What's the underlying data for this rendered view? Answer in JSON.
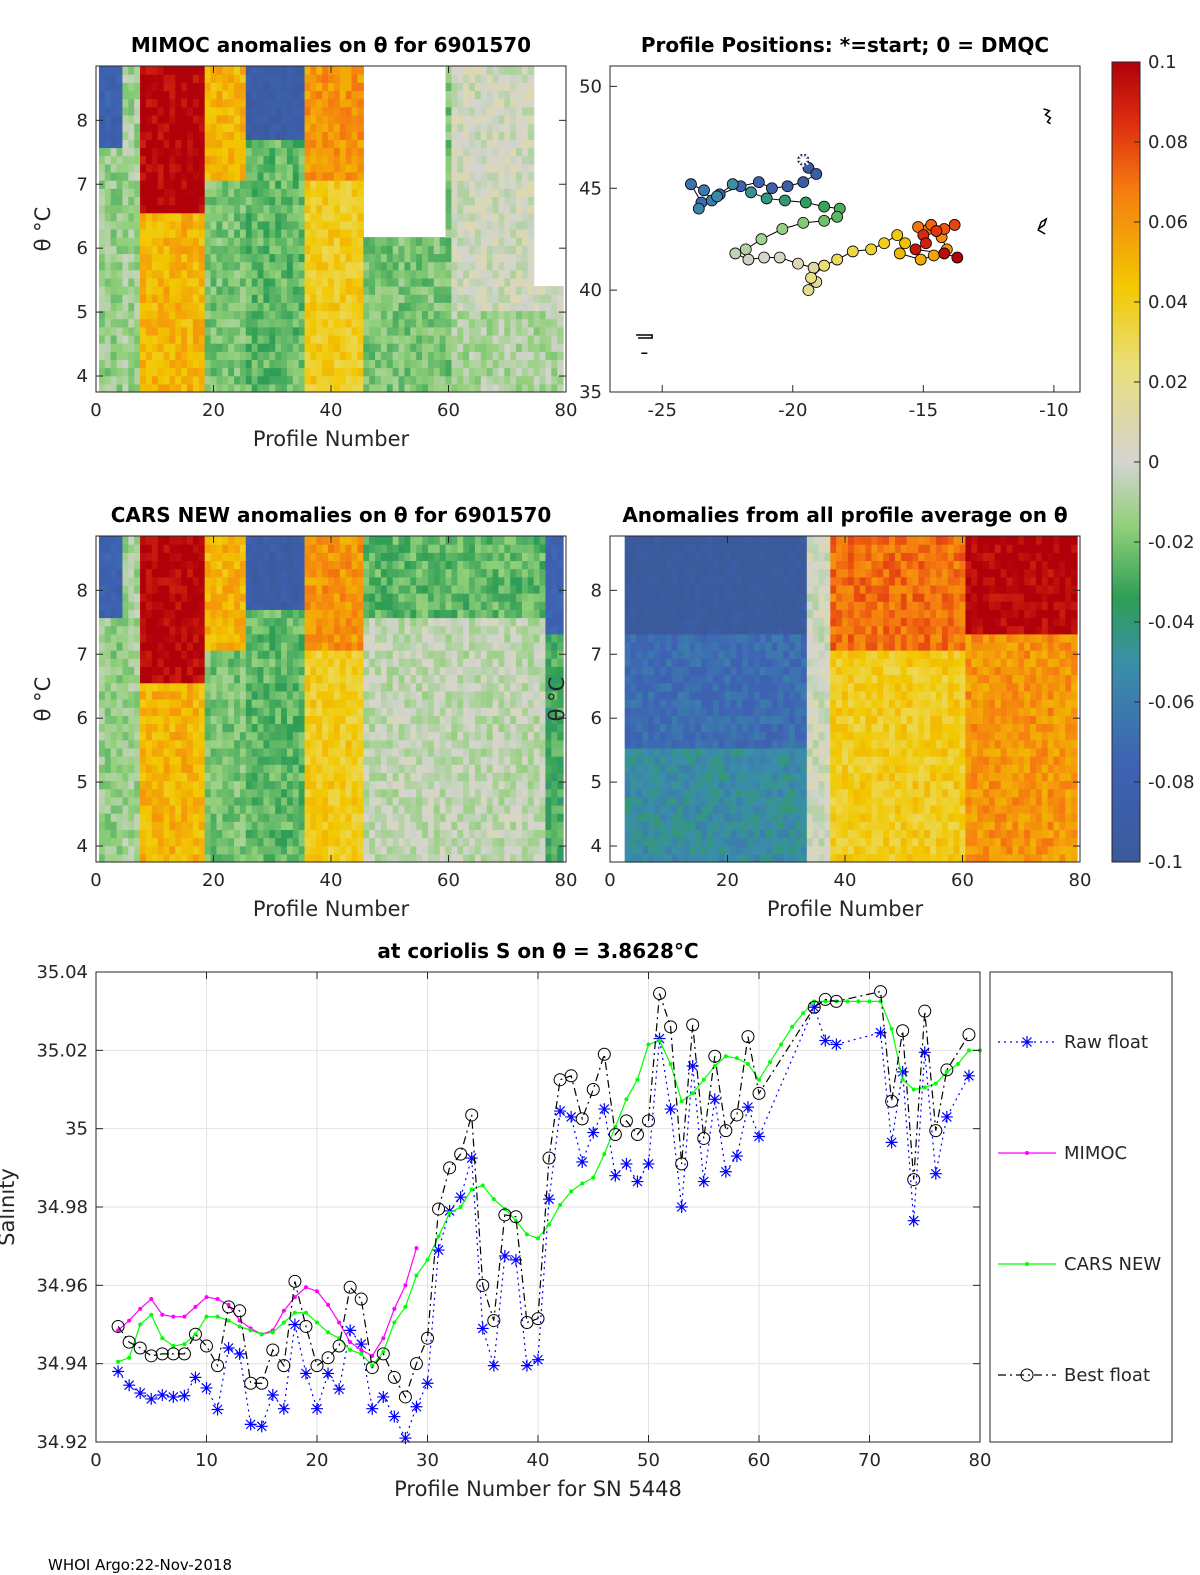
{
  "figure": {
    "footer": "WHOI Argo:22-Nov-2018",
    "colorbar": {
      "ticks": [
        "0.1",
        "0.08",
        "0.06",
        "0.04",
        "0.02",
        "0",
        "-0.02",
        "-0.04",
        "-0.06",
        "-0.08",
        "-0.1"
      ],
      "range": [
        -0.1,
        0.1
      ]
    }
  },
  "chart_data": [
    {
      "type": "heatmap",
      "title": "MIMOC anomalies on θ  for 6901570",
      "xlabel": "Profile Number",
      "ylabel": "θ °C",
      "xlim": [
        0,
        80
      ],
      "ylim": [
        3.75,
        8.85
      ],
      "xticks": [
        "0",
        "20",
        "40",
        "60",
        "80"
      ],
      "yticks": [
        "4",
        "5",
        "6",
        "7",
        "8"
      ]
    },
    {
      "type": "scatter",
      "title": "Profile Positions: *=start; 0 = DMQC",
      "xlabel": "",
      "ylabel": "",
      "xlim": [
        -27,
        -9
      ],
      "ylim": [
        35,
        51
      ],
      "xticks": [
        "-25",
        "-20",
        "-15",
        "-10"
      ],
      "yticks": [
        "35",
        "40",
        "45",
        "50"
      ],
      "lon": [
        -19.6,
        -19.4,
        -19.1,
        -19.6,
        -20.2,
        -20.8,
        -21.3,
        -22.0,
        -22.8,
        -23.5,
        -23.9,
        -23.4,
        -23.1,
        -23.6,
        -22.9,
        -22.3,
        -21.6,
        -21.0,
        -20.3,
        -19.5,
        -18.8,
        -18.2,
        -18.3,
        -18.8,
        -19.6,
        -20.4,
        -21.2,
        -21.8,
        -22.2,
        -21.7,
        -21.1,
        -20.5,
        -19.8,
        -19.2,
        -19.1,
        -19.4,
        -19.3,
        -18.8,
        -18.3,
        -17.7,
        -17.0,
        -16.5,
        -16.0,
        -15.7,
        -15.9,
        -15.1,
        -14.6,
        -14.1,
        -14.3,
        -14.8,
        -15.2,
        -14.7,
        -14.2,
        -13.8,
        -14.5,
        -15.0,
        -14.9,
        -15.3,
        -14.2,
        -13.7
      ],
      "lat": [
        46.4,
        46.0,
        45.7,
        45.3,
        45.1,
        45.0,
        45.3,
        45.1,
        44.7,
        44.3,
        45.2,
        44.9,
        44.4,
        44.0,
        44.6,
        45.2,
        44.8,
        44.5,
        44.4,
        44.3,
        44.1,
        44.0,
        43.6,
        43.4,
        43.3,
        43.0,
        42.5,
        42.0,
        41.8,
        41.5,
        41.6,
        41.6,
        41.3,
        41.1,
        40.4,
        40.0,
        40.6,
        41.2,
        41.5,
        41.9,
        42.0,
        42.3,
        42.7,
        42.3,
        41.8,
        41.5,
        41.7,
        42.0,
        42.6,
        43.0,
        43.1,
        43.2,
        43.0,
        43.2,
        42.9,
        42.7,
        42.3,
        42.0,
        41.8,
        41.6
      ],
      "dmqc": [
        true,
        true,
        true,
        true,
        true,
        true,
        true,
        true,
        true,
        true,
        true,
        true,
        true,
        true,
        true,
        true,
        true,
        true,
        true,
        true,
        true,
        true,
        true,
        true,
        true,
        true,
        true,
        true,
        true,
        true,
        true,
        true,
        true,
        true,
        true,
        true,
        true,
        true,
        true,
        true,
        true,
        true,
        true,
        true,
        true,
        true,
        true,
        true,
        true,
        true,
        true,
        true,
        true,
        true,
        true,
        true,
        true,
        true,
        true,
        true
      ],
      "start": [
        -19.6,
        46.4
      ]
    },
    {
      "type": "heatmap",
      "title": "CARS NEW anomalies on θ for 6901570",
      "xlabel": "Profile Number",
      "ylabel": "θ °C",
      "xlim": [
        0,
        80
      ],
      "ylim": [
        3.75,
        8.85
      ],
      "xticks": [
        "0",
        "20",
        "40",
        "60",
        "80"
      ],
      "yticks": [
        "4",
        "5",
        "6",
        "7",
        "8"
      ]
    },
    {
      "type": "heatmap",
      "title": "Anomalies from all profile average on θ",
      "xlabel": "Profile Number",
      "ylabel": "θ °C",
      "xlim": [
        0,
        80
      ],
      "ylim": [
        3.75,
        8.85
      ],
      "xticks": [
        "0",
        "20",
        "40",
        "60",
        "80"
      ],
      "yticks": [
        "4",
        "5",
        "6",
        "7",
        "8"
      ]
    },
    {
      "type": "line",
      "title": "at coriolis S on θ = 3.8628°C",
      "xlabel": "Profile Number for SN 5448",
      "ylabel": "Salinity",
      "xlim": [
        0,
        80
      ],
      "ylim": [
        34.92,
        35.04
      ],
      "xticks": [
        "0",
        "10",
        "20",
        "30",
        "40",
        "50",
        "60",
        "70",
        "80"
      ],
      "yticks": [
        "34.92",
        "34.94",
        "34.96",
        "34.98",
        "35",
        "35.02",
        "35.04"
      ],
      "legend": [
        "Raw float",
        "MIMOC",
        "CARS NEW",
        "Best float"
      ],
      "legend_position": "outside-right",
      "series": [
        {
          "name": "Raw float",
          "color": "#0000ff",
          "x": [
            2,
            3,
            4,
            5,
            6,
            7,
            8,
            9,
            10,
            11,
            12,
            13,
            14,
            15,
            16,
            17,
            18,
            19,
            20,
            21,
            22,
            23,
            24,
            25,
            26,
            27,
            28,
            29,
            30,
            31,
            32,
            33,
            34,
            35,
            36,
            37,
            38,
            39,
            40,
            41,
            42,
            43,
            44,
            45,
            46,
            47,
            48,
            49,
            50,
            51,
            52,
            53,
            54,
            55,
            56,
            57,
            58,
            59,
            60,
            65,
            66,
            67,
            71,
            72,
            73,
            74,
            75,
            76,
            77,
            79
          ],
          "y": [
            34.938,
            34.9345,
            34.9325,
            34.931,
            34.932,
            34.9315,
            34.9318,
            34.9365,
            34.9338,
            34.9283,
            34.944,
            34.9425,
            34.9245,
            34.924,
            34.932,
            34.9285,
            34.95,
            34.9375,
            34.9285,
            34.9375,
            34.9335,
            34.9485,
            34.945,
            34.9285,
            34.9315,
            34.9265,
            34.921,
            34.929,
            34.935,
            34.969,
            34.979,
            34.9825,
            34.9925,
            34.949,
            34.9395,
            34.9675,
            34.9665,
            34.9395,
            34.941,
            34.982,
            35.0045,
            35.003,
            34.9915,
            34.999,
            35.005,
            34.988,
            34.991,
            34.9865,
            34.991,
            35.023,
            35.005,
            34.98,
            35.016,
            34.9865,
            35.0075,
            34.989,
            34.993,
            35.0055,
            34.998,
            35.031,
            35.0225,
            35.0215,
            35.0245,
            34.9965,
            35.0145,
            34.9765,
            35.0195,
            34.9885,
            35.003,
            35.0135
          ]
        },
        {
          "name": "MIMOC",
          "color": "#ff00ff",
          "x": [
            2,
            3,
            4,
            5,
            6,
            7,
            8,
            9,
            10,
            11,
            12,
            13,
            14,
            15,
            16,
            17,
            18,
            19,
            20,
            21,
            22,
            23,
            24,
            25,
            26,
            27,
            28,
            29
          ],
          "y": [
            34.9485,
            34.951,
            34.954,
            34.9565,
            34.9525,
            34.952,
            34.952,
            34.9545,
            34.957,
            34.9565,
            34.955,
            34.951,
            34.949,
            34.9475,
            34.9485,
            34.9535,
            34.957,
            34.9595,
            34.9585,
            34.955,
            34.9505,
            34.9455,
            34.9435,
            34.942,
            34.9465,
            34.954,
            34.96,
            34.9695
          ]
        },
        {
          "name": "CARS NEW",
          "color": "#00ff00",
          "x": [
            2,
            3,
            4,
            5,
            6,
            7,
            8,
            9,
            10,
            11,
            12,
            13,
            14,
            15,
            16,
            17,
            18,
            19,
            20,
            21,
            22,
            23,
            24,
            25,
            26,
            27,
            28,
            29,
            30,
            31,
            32,
            33,
            34,
            35,
            36,
            37,
            38,
            39,
            40,
            41,
            42,
            43,
            44,
            45,
            46,
            47,
            48,
            49,
            50,
            51,
            52,
            53,
            54,
            55,
            56,
            57,
            58,
            59,
            60,
            61,
            62,
            63,
            64,
            65,
            66,
            67,
            68,
            69,
            70,
            71,
            72,
            73,
            74,
            75,
            76,
            77,
            78,
            79,
            80
          ],
          "y": [
            34.9405,
            34.9415,
            34.95,
            34.9525,
            34.9465,
            34.9445,
            34.945,
            34.9475,
            34.952,
            34.952,
            34.951,
            34.9495,
            34.9485,
            34.9475,
            34.948,
            34.9505,
            34.953,
            34.953,
            34.9505,
            34.948,
            34.9465,
            34.9435,
            34.9425,
            34.9395,
            34.943,
            34.9505,
            34.9545,
            34.9625,
            34.9665,
            34.9725,
            34.9785,
            34.98,
            34.9845,
            34.9855,
            34.982,
            34.9795,
            34.9765,
            34.973,
            34.972,
            34.9755,
            34.9805,
            34.984,
            34.986,
            34.9875,
            34.9935,
            35.0005,
            35.0075,
            35.0125,
            35.0215,
            35.0225,
            35.0165,
            35.007,
            35.009,
            35.0125,
            35.016,
            35.0185,
            35.018,
            35.0165,
            35.0125,
            35.017,
            35.0215,
            35.026,
            35.0295,
            35.0325,
            35.0325,
            35.0325,
            35.0325,
            35.0325,
            35.0325,
            35.0325,
            35.0255,
            35.0125,
            35.01,
            35.0105,
            35.0115,
            35.0145,
            35.0165,
            35.02,
            35.02
          ]
        },
        {
          "name": "Best float",
          "color": "#000000",
          "x": [
            2,
            3,
            4,
            5,
            6,
            7,
            8,
            9,
            10,
            11,
            12,
            13,
            14,
            15,
            16,
            17,
            18,
            19,
            20,
            21,
            22,
            23,
            24,
            25,
            26,
            27,
            28,
            29,
            30,
            31,
            32,
            33,
            34,
            35,
            36,
            37,
            38,
            39,
            40,
            41,
            42,
            43,
            44,
            45,
            46,
            47,
            48,
            49,
            50,
            51,
            52,
            53,
            54,
            55,
            56,
            57,
            58,
            59,
            60,
            65,
            66,
            67,
            71,
            72,
            73,
            74,
            75,
            76,
            77,
            79
          ],
          "y": [
            34.9495,
            34.9455,
            34.944,
            34.942,
            34.9425,
            34.9425,
            34.9425,
            34.9475,
            34.9445,
            34.9395,
            34.9545,
            34.9535,
            34.935,
            34.935,
            34.9435,
            34.9395,
            34.961,
            34.9495,
            34.9395,
            34.9415,
            34.9445,
            34.9595,
            34.9565,
            34.939,
            34.9425,
            34.9365,
            34.9315,
            34.94,
            34.9465,
            34.9795,
            34.99,
            34.9935,
            35.0035,
            34.96,
            34.951,
            34.978,
            34.9775,
            34.9505,
            34.9515,
            34.9925,
            35.0125,
            35.0135,
            35.0025,
            35.01,
            35.019,
            34.9985,
            35.002,
            34.9985,
            35.002,
            35.0345,
            35.026,
            34.991,
            35.0265,
            34.9975,
            35.0185,
            34.9995,
            35.0035,
            35.0235,
            35.009,
            35.031,
            35.033,
            35.0325,
            35.035,
            35.007,
            35.025,
            34.987,
            35.03,
            34.9995,
            35.015,
            35.024
          ]
        }
      ]
    }
  ]
}
